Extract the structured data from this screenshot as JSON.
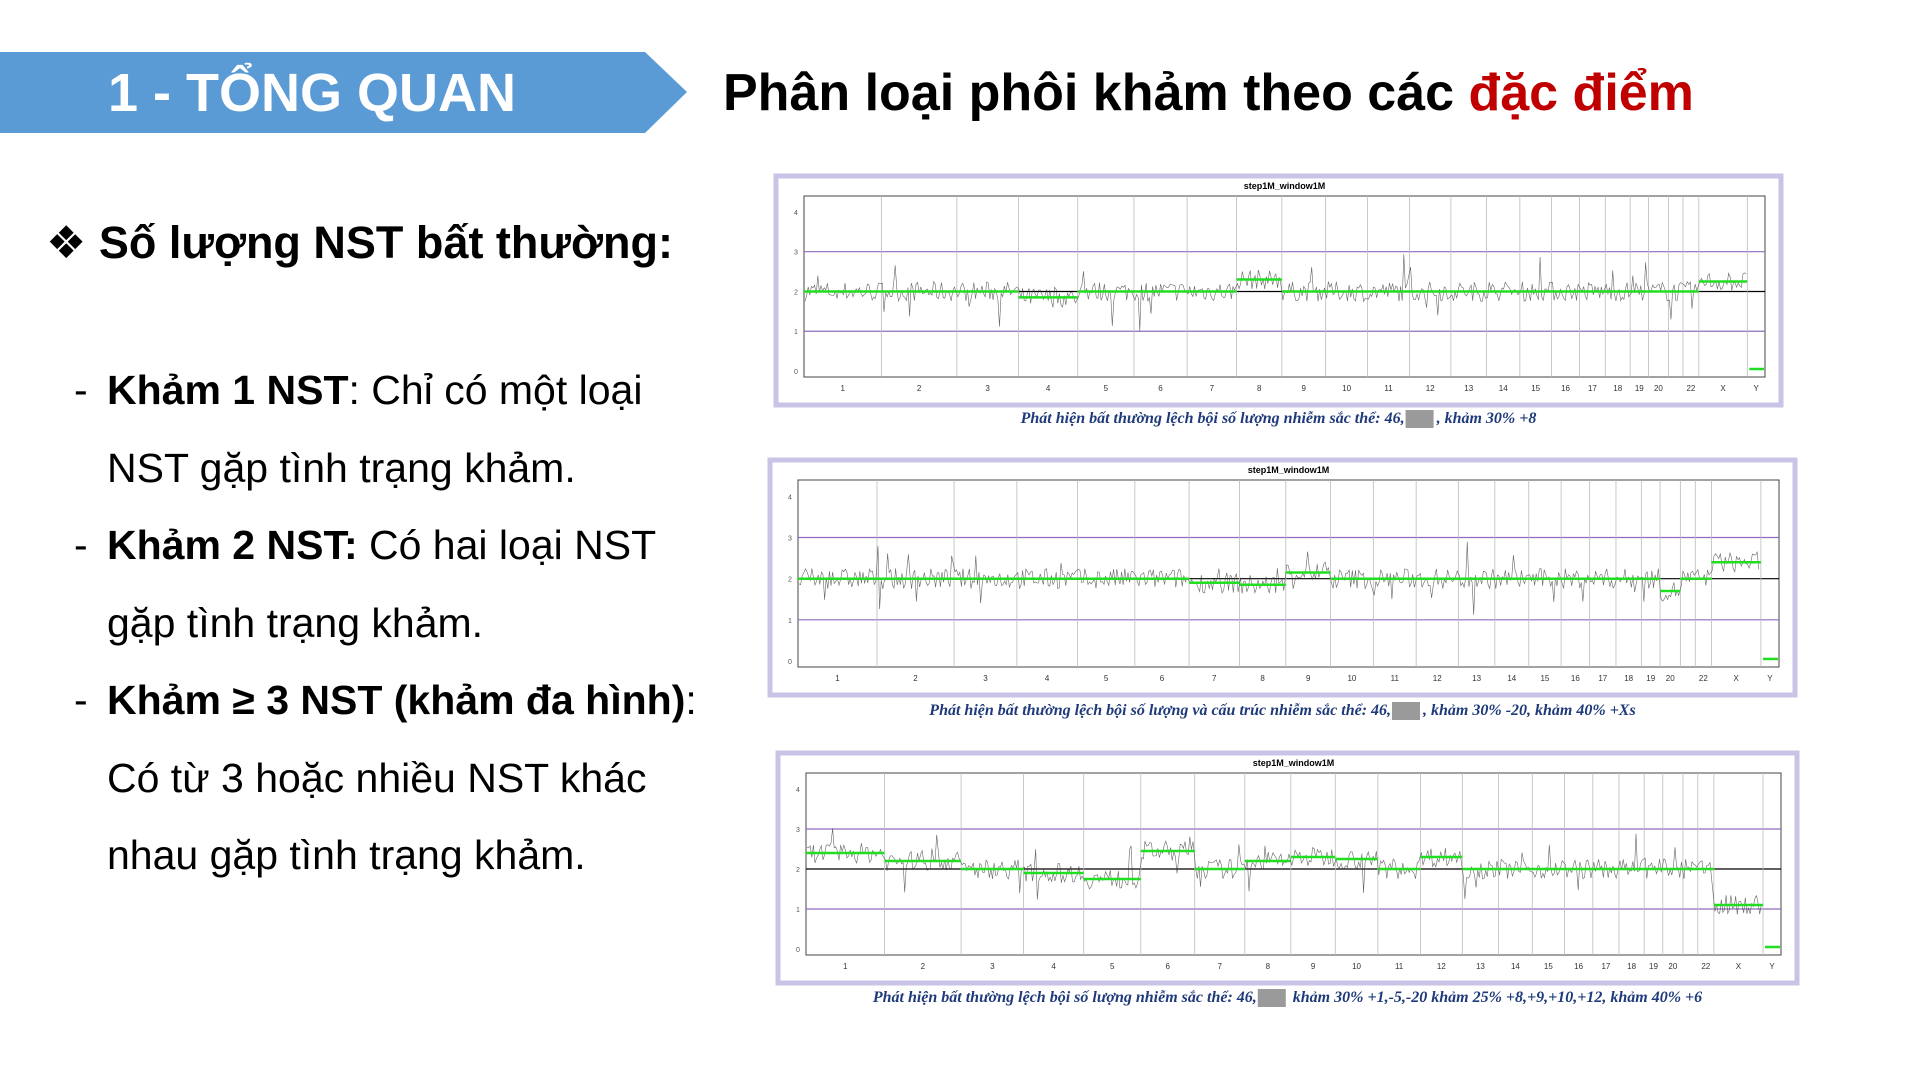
{
  "header": {
    "section": "1 - TỔNG QUAN",
    "title": "Phân loại phôi khảm theo các ",
    "title_highlight": "đặc điểm"
  },
  "content": {
    "heading": "Số lượng NST bất thường:",
    "items": [
      {
        "term": "Khảm 1 NST",
        "text": ": Chỉ có một loại NST gặp tình trạng khảm."
      },
      {
        "term": "Khảm 2 NST:",
        "text": " Có hai loại NST gặp tình trạng khảm."
      },
      {
        "term": "Khảm ≥ 3 NST (khảm đa hình)",
        "text": ": Có từ 3 hoặc nhiều NST khác nhau gặp tình trạng khảm."
      }
    ]
  },
  "figures": [
    {
      "title": "step1M_window1M",
      "y_labels": [
        "0",
        "1",
        "2",
        "3",
        "4"
      ],
      "x_labels": [
        "1",
        "2",
        "3",
        "4",
        "5",
        "6",
        "7",
        "8",
        "9",
        "10",
        "11",
        "12",
        "13",
        "14",
        "15",
        "16",
        "17",
        "18",
        "19",
        "20",
        "22",
        "X",
        "Y"
      ],
      "caption": "Phát hiện bất thường lệch bội số lượng nhiễm sắc thể: 46,",
      "caption_suffix": ", khảm 30% +8"
    },
    {
      "title": "step1M_window1M",
      "y_labels": [
        "0",
        "1",
        "2",
        "3",
        "4"
      ],
      "x_labels": [
        "1",
        "2",
        "3",
        "4",
        "5",
        "6",
        "7",
        "8",
        "9",
        "10",
        "11",
        "12",
        "13",
        "14",
        "15",
        "16",
        "17",
        "18",
        "19",
        "20",
        "22",
        "X",
        "Y"
      ],
      "caption": "Phát hiện bất thường lệch bội số lượng và cấu trúc nhiễm sắc thể: 46,",
      "caption_suffix": ", khảm 30% -20, khảm 40% +Xs"
    },
    {
      "title": "step1M_window1M",
      "y_labels": [
        "0",
        "1",
        "2",
        "3",
        "4"
      ],
      "x_labels": [
        "1",
        "2",
        "3",
        "4",
        "5",
        "6",
        "7",
        "8",
        "9",
        "10",
        "11",
        "12",
        "13",
        "14",
        "15",
        "16",
        "17",
        "18",
        "19",
        "20",
        "22",
        "X",
        "Y"
      ],
      "caption": "Phát hiện bất thường lệch bội số lượng nhiễm sắc thể: 46,",
      "caption_suffix": " khảm 30% +1,-5,-20 khảm 25% +8,+9,+10,+12, khảm 40% +6"
    }
  ]
}
